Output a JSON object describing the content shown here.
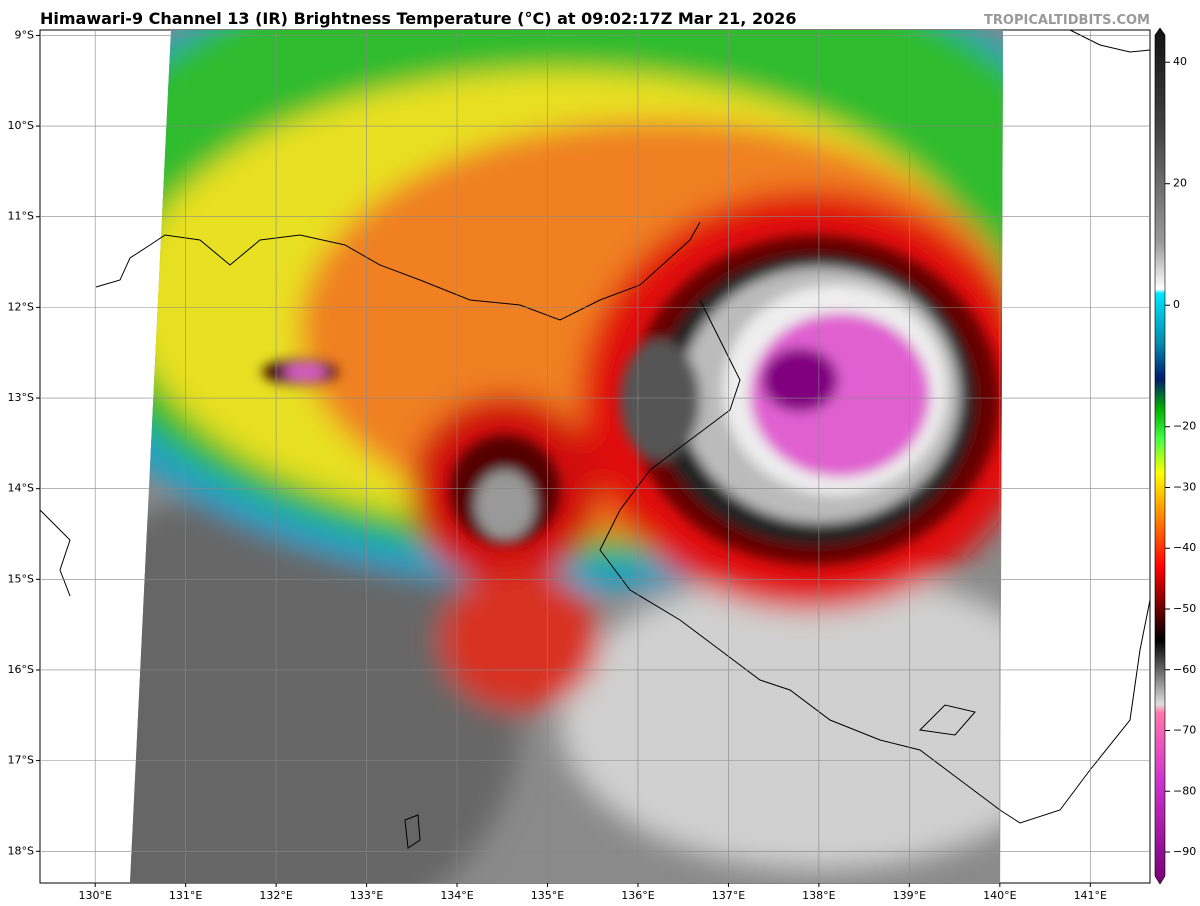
{
  "header": {
    "title": "Himawari-9 Channel 13 (IR) Brightness Temperature (°C) at 09:02:17Z Mar 21, 2026",
    "credit": "TROPICALTIDBITS.COM"
  },
  "map": {
    "lonlim": [
      129.39,
      141.66
    ],
    "latlim": [
      -8.94,
      -18.35
    ],
    "lon_ticks": [
      {
        "value": 130,
        "label": "130°E"
      },
      {
        "value": 131,
        "label": "131°E"
      },
      {
        "value": 132,
        "label": "132°E"
      },
      {
        "value": 133,
        "label": "133°E"
      },
      {
        "value": 134,
        "label": "134°E"
      },
      {
        "value": 135,
        "label": "135°E"
      },
      {
        "value": 136,
        "label": "136°E"
      },
      {
        "value": 137,
        "label": "137°E"
      },
      {
        "value": 138,
        "label": "138°E"
      },
      {
        "value": 139,
        "label": "139°E"
      },
      {
        "value": 140,
        "label": "140°E"
      },
      {
        "value": 141,
        "label": "141°E"
      }
    ],
    "lat_ticks": [
      {
        "value": -9,
        "label": "9°S"
      },
      {
        "value": -10,
        "label": "10°S"
      },
      {
        "value": -11,
        "label": "11°S"
      },
      {
        "value": -12,
        "label": "12°S"
      },
      {
        "value": -13,
        "label": "13°S"
      },
      {
        "value": -14,
        "label": "14°S"
      },
      {
        "value": -15,
        "label": "15°S"
      },
      {
        "value": -16,
        "label": "16°S"
      },
      {
        "value": -17,
        "label": "17°S"
      },
      {
        "value": -18,
        "label": "18°S"
      }
    ]
  },
  "colorbar": {
    "lim": [
      45.3,
      -95.1
    ],
    "ticks": [
      40,
      20,
      0,
      {
        "value": -20,
        "label": "−20"
      },
      {
        "value": -30,
        "label": "−30"
      },
      {
        "value": -40,
        "label": "−40"
      },
      {
        "value": -50,
        "label": "−50"
      },
      {
        "value": -60,
        "label": "−60"
      },
      {
        "value": -70,
        "label": "−70"
      },
      {
        "value": -80,
        "label": "−80"
      },
      {
        "value": -90,
        "label": "−90"
      }
    ]
  }
}
